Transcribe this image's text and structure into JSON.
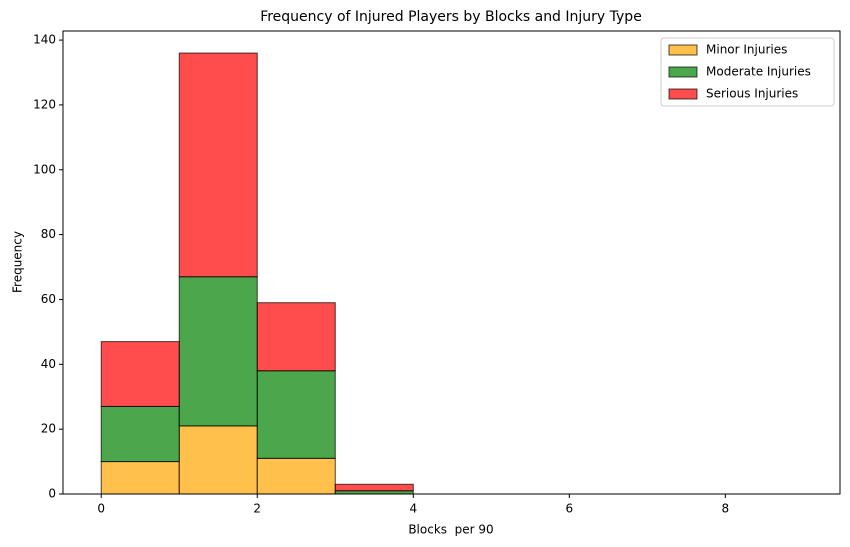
{
  "chart_data": {
    "type": "histogram",
    "stacked": true,
    "title": "Frequency of Injured Players by Blocks and Injury Type",
    "x_label": "Blocks  per 90",
    "y_label": "Frequency",
    "bins": [
      0,
      1,
      2,
      3,
      4,
      5,
      6,
      7,
      8,
      9
    ],
    "series": [
      {
        "name": "Minor Injuries",
        "color": "#ffa500",
        "values": [
          10,
          21,
          11,
          0,
          0,
          0,
          0,
          0,
          0
        ]
      },
      {
        "name": "Moderate Injuries",
        "color": "#008000",
        "values": [
          17,
          46,
          27,
          1,
          0,
          0,
          0,
          0,
          0
        ]
      },
      {
        "name": "Serious Injuries",
        "color": "#ff0000",
        "values": [
          20,
          69,
          21,
          2,
          0,
          0,
          0,
          0,
          0
        ]
      }
    ],
    "alpha": 0.7,
    "xlim": [
      -0.49,
      9.47
    ],
    "xticks": [
      0,
      2,
      4,
      6,
      8
    ],
    "ylim": [
      0,
      142.8
    ],
    "yticks": [
      0,
      20,
      40,
      60,
      80,
      100,
      120,
      140
    ],
    "legend": "upper right"
  }
}
